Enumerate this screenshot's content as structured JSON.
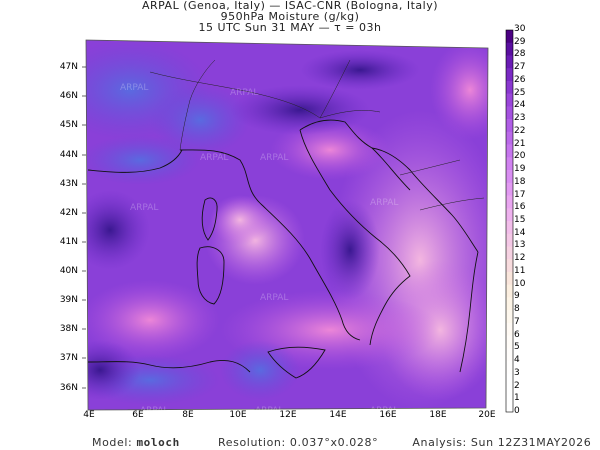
{
  "header": {
    "line1": "ARPAL (Genoa, Italy)  —  ISAC-CNR (Bologna, Italy)",
    "line2": "950hPa Moisture (g/kg)",
    "line3": "15 UTC Sun 31 MAY  —  τ = 03h"
  },
  "axes": {
    "lat_labels": [
      "47N",
      "46N",
      "45N",
      "44N",
      "43N",
      "42N",
      "41N",
      "40N",
      "39N",
      "38N",
      "37N",
      "36N"
    ],
    "lon_labels": [
      "4E",
      "6E",
      "8E",
      "10E",
      "12E",
      "14E",
      "16E",
      "18E",
      "20E"
    ]
  },
  "colorbar": {
    "labels": [
      "30",
      "29",
      "28",
      "27",
      "26",
      "25",
      "24",
      "23",
      "22",
      "21",
      "20",
      "19",
      "18",
      "17",
      "16",
      "15",
      "14",
      "13",
      "12",
      "11",
      "10",
      "9",
      "8",
      "7",
      "6",
      "5",
      "4",
      "3",
      "2",
      "1",
      "0"
    ],
    "colors": [
      "#4b0082",
      "#5a0fa0",
      "#6a1cb5",
      "#7a2ac4",
      "#8a38d0",
      "#9a46da",
      "#a552e0",
      "#b05ee6",
      "#bb6aea",
      "#c676ee",
      "#d082f0",
      "#d98ef2",
      "#e29af2",
      "#e9a6f0",
      "#eeb2ee",
      "#f2beea",
      "#f4c8e6",
      "#f6d2e2",
      "#f8dcde",
      "#fae6dc",
      "#fcefe0",
      "#fdf4e6",
      "#fef8ee",
      "#fffaf4",
      "#fffcf8",
      "#fffdfb",
      "#fffefd",
      "#ffffff",
      "#ffffff",
      "#ffffff"
    ]
  },
  "footer": {
    "model_label": "Model:",
    "model_name": "moloch",
    "resolution": "Resolution: 0.037°x0.028°",
    "analysis": "Analysis: Sun 12Z31MAY2026"
  },
  "watermark": "ARPAL"
}
